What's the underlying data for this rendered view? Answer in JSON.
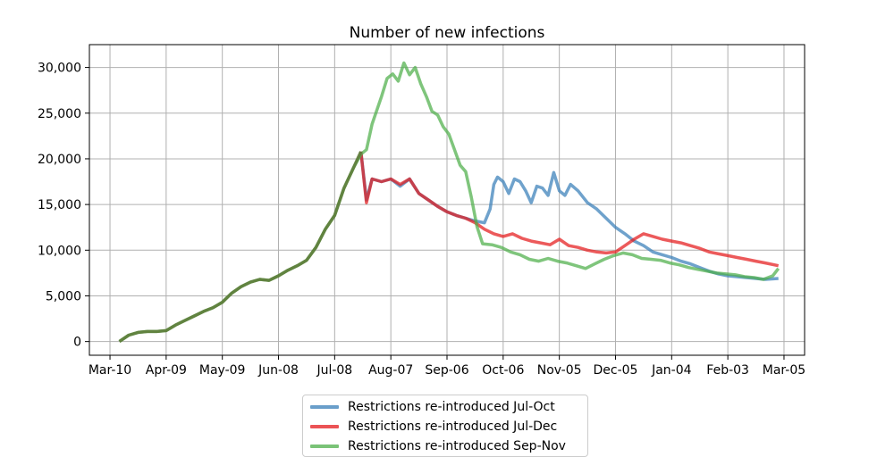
{
  "chart_data": {
    "type": "line",
    "title": "Number of new infections",
    "xlabel": "",
    "ylabel": "",
    "xlim": [
      "2020-02-28",
      "2021-03-16"
    ],
    "ylim": [
      -1500,
      32500
    ],
    "x_ticks": [
      {
        "date": "2020-03-10",
        "label": "Mar-10"
      },
      {
        "date": "2020-04-09",
        "label": "Apr-09"
      },
      {
        "date": "2020-05-09",
        "label": "May-09"
      },
      {
        "date": "2020-06-08",
        "label": "Jun-08"
      },
      {
        "date": "2020-07-08",
        "label": "Jul-08"
      },
      {
        "date": "2020-08-07",
        "label": "Aug-07"
      },
      {
        "date": "2020-09-06",
        "label": "Sep-06"
      },
      {
        "date": "2020-10-06",
        "label": "Oct-06"
      },
      {
        "date": "2020-11-05",
        "label": "Nov-05"
      },
      {
        "date": "2020-12-05",
        "label": "Dec-05"
      },
      {
        "date": "2021-01-04",
        "label": "Jan-04"
      },
      {
        "date": "2021-02-03",
        "label": "Feb-03"
      },
      {
        "date": "2021-03-05",
        "label": "Mar-05"
      }
    ],
    "y_ticks": [
      {
        "value": 0,
        "label": "0"
      },
      {
        "value": 5000,
        "label": "5,000"
      },
      {
        "value": 10000,
        "label": "10,000"
      },
      {
        "value": 15000,
        "label": "15,000"
      },
      {
        "value": 20000,
        "label": "20,000"
      },
      {
        "value": 25000,
        "label": "25,000"
      },
      {
        "value": 30000,
        "label": "30,000"
      }
    ],
    "grid": true,
    "legend_position": "bottom-center",
    "series": [
      {
        "name": "Restrictions re-introduced Jul-Oct",
        "color": "#377eb8",
        "points": [
          [
            "2020-07-22",
            20800
          ],
          [
            "2020-07-25",
            15500
          ],
          [
            "2020-07-28",
            17800
          ],
          [
            "2020-08-02",
            17500
          ],
          [
            "2020-08-07",
            17800
          ],
          [
            "2020-08-12",
            17000
          ],
          [
            "2020-08-17",
            17800
          ],
          [
            "2020-08-22",
            16200
          ],
          [
            "2020-08-27",
            15500
          ],
          [
            "2020-09-01",
            14800
          ],
          [
            "2020-09-06",
            14200
          ],
          [
            "2020-09-11",
            13800
          ],
          [
            "2020-09-16",
            13500
          ],
          [
            "2020-09-21",
            13200
          ],
          [
            "2020-09-26",
            13000
          ],
          [
            "2020-09-29",
            14500
          ],
          [
            "2020-10-01",
            17200
          ],
          [
            "2020-10-03",
            18000
          ],
          [
            "2020-10-06",
            17500
          ],
          [
            "2020-10-09",
            16200
          ],
          [
            "2020-10-12",
            17800
          ],
          [
            "2020-10-15",
            17500
          ],
          [
            "2020-10-18",
            16500
          ],
          [
            "2020-10-21",
            15200
          ],
          [
            "2020-10-24",
            17000
          ],
          [
            "2020-10-27",
            16800
          ],
          [
            "2020-10-30",
            16000
          ],
          [
            "2020-11-02",
            18500
          ],
          [
            "2020-11-05",
            16500
          ],
          [
            "2020-11-08",
            16000
          ],
          [
            "2020-11-11",
            17200
          ],
          [
            "2020-11-15",
            16500
          ],
          [
            "2020-11-20",
            15200
          ],
          [
            "2020-11-25",
            14500
          ],
          [
            "2020-11-30",
            13500
          ],
          [
            "2020-12-05",
            12500
          ],
          [
            "2020-12-10",
            11800
          ],
          [
            "2020-12-15",
            11000
          ],
          [
            "2020-12-20",
            10500
          ],
          [
            "2020-12-25",
            9800
          ],
          [
            "2020-12-30",
            9500
          ],
          [
            "2021-01-04",
            9200
          ],
          [
            "2021-01-09",
            8800
          ],
          [
            "2021-01-14",
            8500
          ],
          [
            "2021-01-19",
            8100
          ],
          [
            "2021-01-24",
            7700
          ],
          [
            "2021-01-29",
            7400
          ],
          [
            "2021-02-03",
            7200
          ],
          [
            "2021-02-08",
            7100
          ],
          [
            "2021-02-13",
            7000
          ],
          [
            "2021-02-18",
            6900
          ],
          [
            "2021-02-23",
            6800
          ],
          [
            "2021-03-02",
            6900
          ]
        ]
      },
      {
        "name": "Restrictions re-introduced Jul-Dec",
        "color": "#e41a1c",
        "points": [
          [
            "2020-07-22",
            20800
          ],
          [
            "2020-07-25",
            15200
          ],
          [
            "2020-07-28",
            17800
          ],
          [
            "2020-08-02",
            17500
          ],
          [
            "2020-08-07",
            17800
          ],
          [
            "2020-08-12",
            17200
          ],
          [
            "2020-08-17",
            17800
          ],
          [
            "2020-08-22",
            16200
          ],
          [
            "2020-08-27",
            15500
          ],
          [
            "2020-09-01",
            14800
          ],
          [
            "2020-09-06",
            14200
          ],
          [
            "2020-09-11",
            13800
          ],
          [
            "2020-09-16",
            13500
          ],
          [
            "2020-09-21",
            13000
          ],
          [
            "2020-09-26",
            12300
          ],
          [
            "2020-10-01",
            11800
          ],
          [
            "2020-10-06",
            11500
          ],
          [
            "2020-10-11",
            11800
          ],
          [
            "2020-10-16",
            11300
          ],
          [
            "2020-10-21",
            11000
          ],
          [
            "2020-10-26",
            10800
          ],
          [
            "2020-10-31",
            10600
          ],
          [
            "2020-11-05",
            11200
          ],
          [
            "2020-11-10",
            10500
          ],
          [
            "2020-11-15",
            10300
          ],
          [
            "2020-11-20",
            10000
          ],
          [
            "2020-11-25",
            9800
          ],
          [
            "2020-11-30",
            9700
          ],
          [
            "2020-12-05",
            9800
          ],
          [
            "2020-12-10",
            10500
          ],
          [
            "2020-12-15",
            11200
          ],
          [
            "2020-12-20",
            11800
          ],
          [
            "2020-12-25",
            11500
          ],
          [
            "2020-12-30",
            11200
          ],
          [
            "2021-01-04",
            11000
          ],
          [
            "2021-01-09",
            10800
          ],
          [
            "2021-01-14",
            10500
          ],
          [
            "2021-01-19",
            10200
          ],
          [
            "2021-01-24",
            9800
          ],
          [
            "2021-01-29",
            9600
          ],
          [
            "2021-02-03",
            9400
          ],
          [
            "2021-02-08",
            9200
          ],
          [
            "2021-02-13",
            9000
          ],
          [
            "2021-02-18",
            8800
          ],
          [
            "2021-02-23",
            8600
          ],
          [
            "2021-03-02",
            8300
          ]
        ]
      },
      {
        "name": "Restrictions re-introduced Sep-Nov",
        "color": "#4daf4a",
        "points": [
          [
            "2020-03-15",
            0
          ],
          [
            "2020-03-20",
            700
          ],
          [
            "2020-03-25",
            1000
          ],
          [
            "2020-03-30",
            1100
          ],
          [
            "2020-04-04",
            1100
          ],
          [
            "2020-04-09",
            1200
          ],
          [
            "2020-04-14",
            1800
          ],
          [
            "2020-04-19",
            2300
          ],
          [
            "2020-04-24",
            2800
          ],
          [
            "2020-04-29",
            3300
          ],
          [
            "2020-05-04",
            3700
          ],
          [
            "2020-05-09",
            4300
          ],
          [
            "2020-05-14",
            5300
          ],
          [
            "2020-05-19",
            6000
          ],
          [
            "2020-05-24",
            6500
          ],
          [
            "2020-05-29",
            6800
          ],
          [
            "2020-06-03",
            6700
          ],
          [
            "2020-06-08",
            7200
          ],
          [
            "2020-06-13",
            7800
          ],
          [
            "2020-06-18",
            8300
          ],
          [
            "2020-06-23",
            8900
          ],
          [
            "2020-06-28",
            10300
          ],
          [
            "2020-07-03",
            12300
          ],
          [
            "2020-07-08",
            13800
          ],
          [
            "2020-07-13",
            16800
          ],
          [
            "2020-07-18",
            19000
          ],
          [
            "2020-07-22",
            20500
          ],
          [
            "2020-07-25",
            21000
          ],
          [
            "2020-07-28",
            23800
          ],
          [
            "2020-08-02",
            26800
          ],
          [
            "2020-08-05",
            28800
          ],
          [
            "2020-08-08",
            29300
          ],
          [
            "2020-08-11",
            28500
          ],
          [
            "2020-08-14",
            30500
          ],
          [
            "2020-08-17",
            29200
          ],
          [
            "2020-08-20",
            30000
          ],
          [
            "2020-08-23",
            28200
          ],
          [
            "2020-08-26",
            26800
          ],
          [
            "2020-08-29",
            25200
          ],
          [
            "2020-09-01",
            24800
          ],
          [
            "2020-09-04",
            23500
          ],
          [
            "2020-09-07",
            22700
          ],
          [
            "2020-09-10",
            21000
          ],
          [
            "2020-09-13",
            19300
          ],
          [
            "2020-09-16",
            18600
          ],
          [
            "2020-09-19",
            15800
          ],
          [
            "2020-09-22",
            12600
          ],
          [
            "2020-09-25",
            10700
          ],
          [
            "2020-09-30",
            10600
          ],
          [
            "2020-10-05",
            10300
          ],
          [
            "2020-10-10",
            9800
          ],
          [
            "2020-10-15",
            9500
          ],
          [
            "2020-10-20",
            9000
          ],
          [
            "2020-10-25",
            8800
          ],
          [
            "2020-10-30",
            9100
          ],
          [
            "2020-11-04",
            8800
          ],
          [
            "2020-11-09",
            8600
          ],
          [
            "2020-11-14",
            8300
          ],
          [
            "2020-11-19",
            8000
          ],
          [
            "2020-11-24",
            8500
          ],
          [
            "2020-11-29",
            9000
          ],
          [
            "2020-12-04",
            9400
          ],
          [
            "2020-12-09",
            9700
          ],
          [
            "2020-12-14",
            9500
          ],
          [
            "2020-12-19",
            9100
          ],
          [
            "2020-12-24",
            9000
          ],
          [
            "2020-12-29",
            8900
          ],
          [
            "2021-01-03",
            8600
          ],
          [
            "2021-01-08",
            8400
          ],
          [
            "2021-01-13",
            8100
          ],
          [
            "2021-01-18",
            7900
          ],
          [
            "2021-01-23",
            7700
          ],
          [
            "2021-01-28",
            7500
          ],
          [
            "2021-02-02",
            7400
          ],
          [
            "2021-02-07",
            7300
          ],
          [
            "2021-02-12",
            7100
          ],
          [
            "2021-02-17",
            7000
          ],
          [
            "2021-02-22",
            6800
          ],
          [
            "2021-02-27",
            7200
          ],
          [
            "2021-03-02",
            8000
          ]
        ]
      },
      {
        "name": "",
        "color": "#5e7b3a",
        "points": [
          [
            "2020-03-15",
            0
          ],
          [
            "2020-03-20",
            700
          ],
          [
            "2020-03-25",
            1000
          ],
          [
            "2020-03-30",
            1100
          ],
          [
            "2020-04-04",
            1100
          ],
          [
            "2020-04-09",
            1200
          ],
          [
            "2020-04-14",
            1800
          ],
          [
            "2020-04-19",
            2300
          ],
          [
            "2020-04-24",
            2800
          ],
          [
            "2020-04-29",
            3300
          ],
          [
            "2020-05-04",
            3700
          ],
          [
            "2020-05-09",
            4300
          ],
          [
            "2020-05-14",
            5300
          ],
          [
            "2020-05-19",
            6000
          ],
          [
            "2020-05-24",
            6500
          ],
          [
            "2020-05-29",
            6800
          ],
          [
            "2020-06-03",
            6700
          ],
          [
            "2020-06-08",
            7200
          ],
          [
            "2020-06-13",
            7800
          ],
          [
            "2020-06-18",
            8300
          ],
          [
            "2020-06-23",
            8900
          ],
          [
            "2020-06-28",
            10300
          ],
          [
            "2020-07-03",
            12300
          ],
          [
            "2020-07-08",
            13800
          ],
          [
            "2020-07-13",
            16800
          ],
          [
            "2020-07-18",
            19000
          ],
          [
            "2020-07-22",
            20800
          ]
        ]
      }
    ]
  },
  "legend": {
    "items": [
      {
        "label": "Restrictions re-introduced Jul-Oct",
        "color": "#377eb8"
      },
      {
        "label": "Restrictions re-introduced Jul-Dec",
        "color": "#e41a1c"
      },
      {
        "label": "Restrictions re-introduced Sep-Nov",
        "color": "#4daf4a"
      }
    ]
  }
}
